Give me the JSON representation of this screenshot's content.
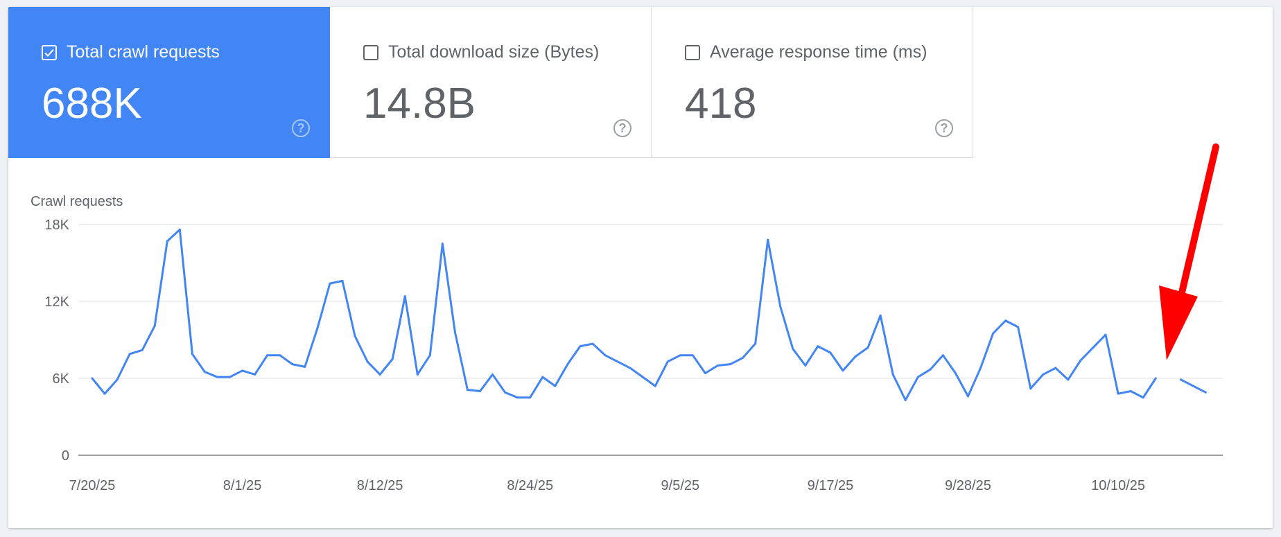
{
  "metrics": [
    {
      "label": "Total crawl requests",
      "value": "688K",
      "checked": true
    },
    {
      "label": "Total download size (Bytes)",
      "value": "14.8B",
      "checked": false
    },
    {
      "label": "Average response time (ms)",
      "value": "418",
      "checked": false
    }
  ],
  "colors": {
    "accent": "#4285f4",
    "line": "#4285f4",
    "annotation_arrow": "#ff0000"
  },
  "chart_data": {
    "type": "line",
    "ylabel": "Crawl requests",
    "ylim": [
      0,
      18000
    ],
    "yticks": [
      {
        "v": 0,
        "label": "0"
      },
      {
        "v": 6000,
        "label": "6K"
      },
      {
        "v": 12000,
        "label": "12K"
      },
      {
        "v": 18000,
        "label": "18K"
      }
    ],
    "xticks": [
      "7/20/25",
      "8/1/25",
      "8/12/25",
      "8/24/25",
      "9/5/25",
      "9/17/25",
      "9/28/25",
      "10/10/25"
    ],
    "grid": true,
    "x": [
      "7/20/25",
      "7/21/25",
      "7/22/25",
      "7/23/25",
      "7/24/25",
      "7/25/25",
      "7/26/25",
      "7/27/25",
      "7/28/25",
      "7/29/25",
      "7/30/25",
      "7/31/25",
      "8/1/25",
      "8/2/25",
      "8/3/25",
      "8/4/25",
      "8/5/25",
      "8/6/25",
      "8/7/25",
      "8/8/25",
      "8/9/25",
      "8/10/25",
      "8/11/25",
      "8/12/25",
      "8/13/25",
      "8/14/25",
      "8/15/25",
      "8/16/25",
      "8/17/25",
      "8/18/25",
      "8/19/25",
      "8/20/25",
      "8/21/25",
      "8/22/25",
      "8/23/25",
      "8/24/25",
      "8/25/25",
      "8/26/25",
      "8/27/25",
      "8/28/25",
      "8/29/25",
      "8/30/25",
      "8/31/25",
      "9/1/25",
      "9/2/25",
      "9/3/25",
      "9/4/25",
      "9/5/25",
      "9/6/25",
      "9/7/25",
      "9/8/25",
      "9/9/25",
      "9/10/25",
      "9/11/25",
      "9/12/25",
      "9/13/25",
      "9/14/25",
      "9/15/25",
      "9/16/25",
      "9/17/25",
      "9/18/25",
      "9/19/25",
      "9/20/25",
      "9/21/25",
      "9/22/25",
      "9/23/25",
      "9/24/25",
      "9/25/25",
      "9/26/25",
      "9/27/25",
      "9/28/25",
      "9/29/25",
      "9/30/25",
      "10/1/25",
      "10/2/25",
      "10/3/25",
      "10/4/25",
      "10/5/25",
      "10/6/25",
      "10/7/25",
      "10/8/25",
      "10/9/25",
      "10/10/25",
      "10/11/25",
      "10/12/25",
      "10/13/25",
      "10/14/25",
      "10/15/25",
      "10/16/25",
      "10/17/25"
    ],
    "series": [
      {
        "values": [
          6000,
          4800,
          5900,
          7900,
          8200,
          10100,
          16700,
          17600,
          7900,
          6500,
          6100,
          6100,
          6600,
          6300,
          7800,
          7800,
          7100,
          6900,
          9900,
          13400,
          13600,
          9300,
          7300,
          6300,
          7500,
          12400,
          6300,
          7800,
          16500,
          9600,
          5100,
          5000,
          6300,
          4900,
          4500,
          4500,
          6100,
          5400,
          7100,
          8500,
          8700,
          7800,
          7300,
          6800,
          6100,
          5400,
          7300,
          7800,
          7800,
          6400,
          7000,
          7100,
          7600,
          8700,
          16800,
          11600,
          8300,
          7000,
          8500,
          8000,
          6600,
          7700,
          8400,
          10900,
          6300,
          4300,
          6100,
          6700,
          7800,
          6400,
          4600,
          6800,
          9500,
          10500,
          10000,
          5200,
          6300,
          6800,
          5900,
          7400,
          8400,
          9400,
          4800,
          5000,
          4500,
          6000,
          null,
          5900,
          5400,
          4900
        ]
      }
    ]
  }
}
